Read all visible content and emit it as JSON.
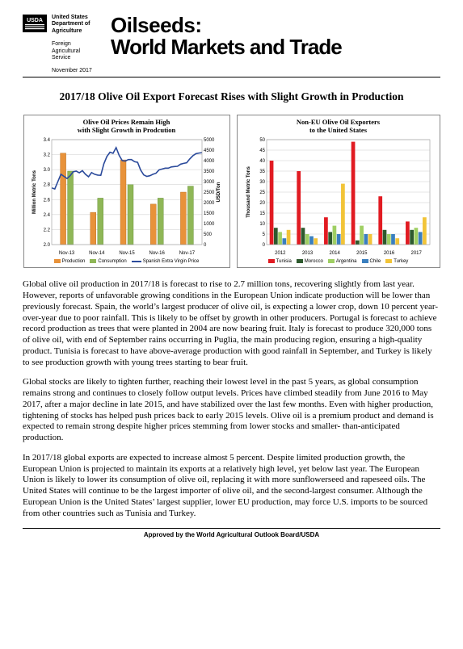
{
  "header": {
    "agency_line1": "United States",
    "agency_line2": "Department of",
    "agency_line3": "Agriculture",
    "sub1_line1": "Foreign",
    "sub1_line2": "Agricultural",
    "sub1_line3": "Service",
    "date": "November 2017",
    "title_line1": "Oilseeds:",
    "title_line2": "World Markets and Trade"
  },
  "subtitle": "2017/18 Olive Oil Export Forecast Rises with Slight Growth in Production",
  "chart1": {
    "type": "bar+line",
    "title_l1": "Olive Oil Prices Remain High",
    "title_l2": "with Slight Growth in Prodcution",
    "y1_label": "Million Metric Tons",
    "y2_label": "USD/Ton",
    "y1_lim": [
      2.0,
      3.4
    ],
    "y1_ticks": [
      2.0,
      2.2,
      2.4,
      2.6,
      2.8,
      3.0,
      3.2,
      3.4
    ],
    "y2_lim": [
      0,
      5000
    ],
    "y2_ticks": [
      0,
      500,
      1000,
      1500,
      2000,
      2500,
      3000,
      3500,
      4000,
      4500,
      5000
    ],
    "x_labels": [
      "Nov-13",
      "Nov-14",
      "Nov-15",
      "Nov-16",
      "Nov-17"
    ],
    "production_color": "#e8923a",
    "consumption_color": "#8fb757",
    "price_color": "#2b4a9b",
    "grid_color": "#cccccc",
    "production": [
      3.22,
      2.43,
      3.13,
      2.54,
      2.7
    ],
    "consumption": [
      2.98,
      2.62,
      2.8,
      2.62,
      2.78
    ],
    "price_points": [
      2700,
      2650,
      3000,
      3350,
      3250,
      3150,
      3280,
      3470,
      3500,
      3420,
      3520,
      3350,
      3230,
      3430,
      3350,
      3310,
      3300,
      3850,
      4200,
      4400,
      4350,
      4620,
      4250,
      4000,
      3980,
      4050,
      4050,
      3950,
      3920,
      3550,
      3320,
      3250,
      3280,
      3350,
      3400,
      3560,
      3600,
      3640,
      3640,
      3700,
      3720,
      3730,
      3830,
      3870,
      3900,
      4080,
      4230,
      4330,
      4360,
      4380
    ],
    "legend": [
      "Production",
      "Consumption",
      "Spanish Extra Virgin Price"
    ]
  },
  "chart2": {
    "type": "grouped-bar",
    "title_l1": "Non-EU Olive Oil Exporters",
    "title_l2": "to the United States",
    "y_label": "Thousand Metric Tons",
    "y_lim": [
      0,
      50
    ],
    "y_ticks": [
      0,
      5,
      10,
      15,
      20,
      25,
      30,
      35,
      40,
      45,
      50
    ],
    "x_labels": [
      "2012",
      "2013",
      "2014",
      "2015",
      "2016",
      "2017"
    ],
    "colors": {
      "Tunisia": "#e11b22",
      "Morocco": "#2e5a2e",
      "Argentina": "#9fcf63",
      "Chile": "#3a7fbf",
      "Turkey": "#f2c438"
    },
    "grid_color": "#cccccc",
    "series": {
      "Tunisia": [
        40,
        35,
        13,
        49,
        23,
        11
      ],
      "Morocco": [
        8,
        8,
        6,
        2,
        7,
        7
      ],
      "Argentina": [
        6,
        5,
        9,
        9,
        5,
        8
      ],
      "Chile": [
        3,
        4,
        5,
        5,
        5,
        6
      ],
      "Turkey": [
        7,
        3,
        29,
        5,
        3,
        13
      ]
    },
    "legend_order": [
      "Tunisia",
      "Morocco",
      "Argentina",
      "Chile",
      "Turkey"
    ]
  },
  "body": {
    "p1": "Global olive oil production in 2017/18 is forecast to rise to 2.7 million tons, recovering slightly from last year.  However, reports of unfavorable growing conditions in the European Union indicate production will be lower than previously forecast.  Spain, the world’s largest producer of olive oil, is expecting a lower crop, down 10 percent year-over-year due to poor rainfall.  This is likely to be offset by growth in other producers.  Portugal is forecast to achieve record production as trees that were planted in 2004 are now bearing fruit.  Italy is forecast to produce 320,000 tons of olive oil, with end of September rains occurring in Puglia, the main producing region, ensuring a high-quality product.  Tunisia is forecast to have above-average production with good rainfall in September, and Turkey is likely to see production growth with young trees starting to bear fruit.",
    "p2": "Global stocks are likely to tighten further, reaching their lowest level in the past 5 years, as global consumption remains strong and continues to closely follow output levels.  Prices have climbed steadily from June 2016 to May 2017, after a major decline in late 2015, and have stabilized over the last few months.  Even with higher production, tightening of stocks has helped push prices back to early 2015 levels.  Olive oil is a premium product and demand is expected to remain strong despite higher prices stemming from lower stocks and smaller- than-anticipated production.",
    "p3": "In 2017/18 global exports are expected to increase almost 5 percent.  Despite limited production growth, the European Union is projected to maintain its exports at a relatively high level, yet below last year.  The European Union is likely to lower its consumption of olive oil, replacing it with more sunflowerseed and rapeseed oils.  The United States will continue to be the largest importer of olive oil, and the second-largest consumer.  Although the European Union is the United States’ largest supplier, lower EU production, may force U.S. imports to be sourced from other countries such as Tunisia and Turkey."
  },
  "footer": "Approved by the World Agricultural Outlook Board/USDA"
}
